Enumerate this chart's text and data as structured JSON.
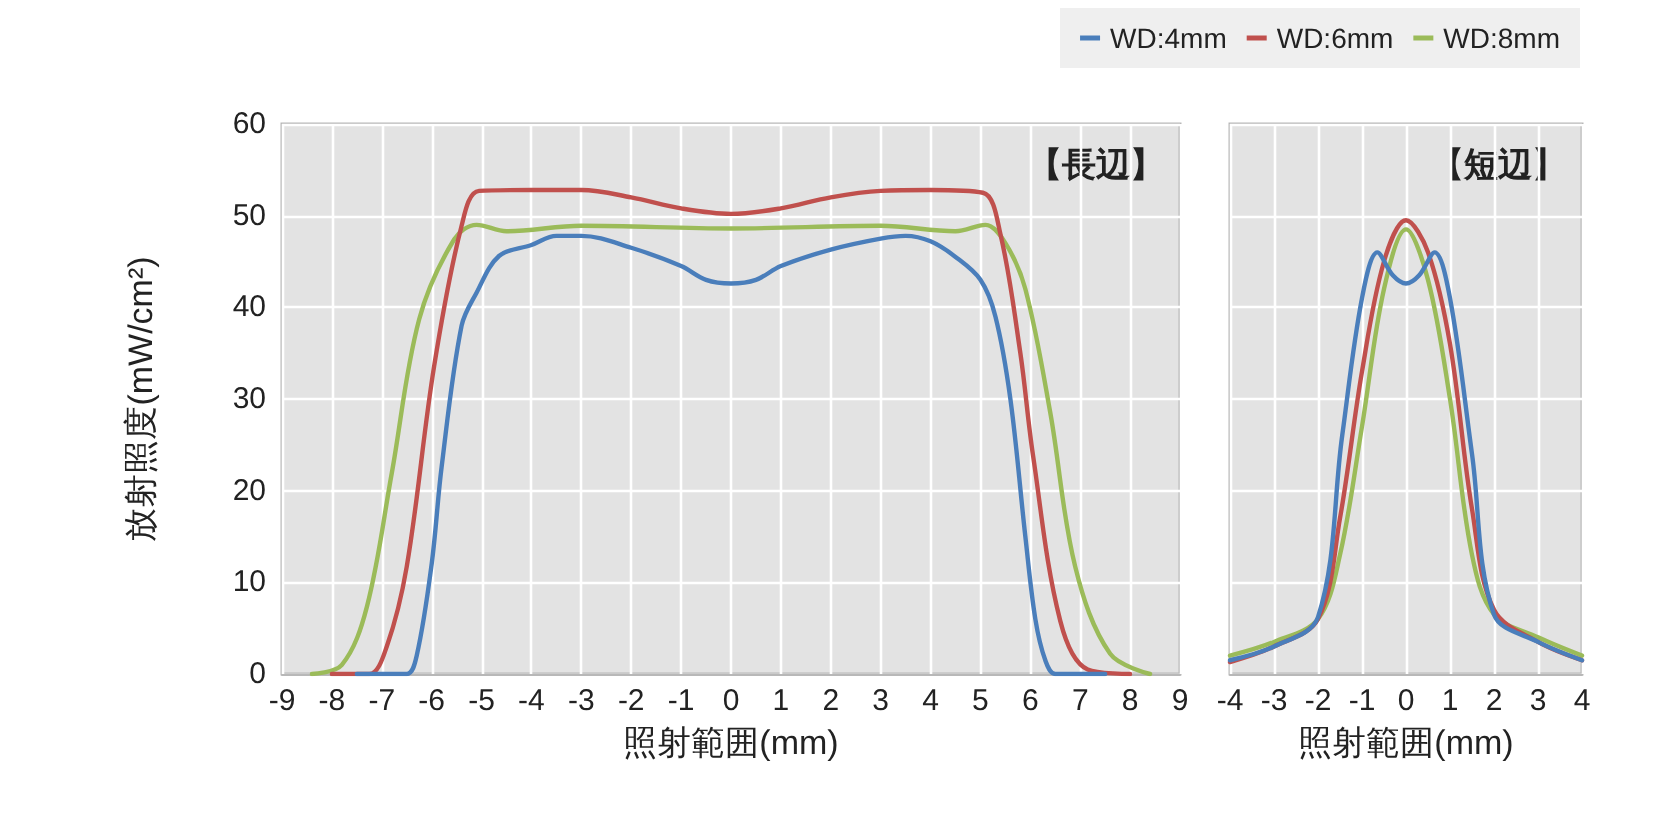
{
  "chart_data": [
    {
      "type": "line",
      "xlabel": "照射範囲(mm)",
      "ylabel": "放射照度(mW/cm²)",
      "annotations": [
        "【長辺】"
      ],
      "xlim": [
        -9,
        9
      ],
      "xticks": [
        -9,
        -8,
        -7,
        -6,
        -5,
        -4,
        -3,
        -2,
        -1,
        0,
        1,
        2,
        3,
        4,
        5,
        6,
        7,
        8,
        9
      ],
      "ylim": [
        0,
        60
      ],
      "yticks": [
        0,
        10,
        20,
        30,
        40,
        50,
        60
      ],
      "grid": true,
      "legend": "top right",
      "marker": "none",
      "line_style": "solid",
      "series": [
        {
          "name": "WD:4mm",
          "color": "#4a7ebb",
          "x": [
            -7.5,
            -6.5,
            -6.3,
            -6,
            -5.8,
            -5.4,
            -5.1,
            -4.65,
            -4,
            -3.5,
            -3,
            -2,
            -1,
            -0.5,
            0,
            0.5,
            1,
            2,
            3,
            3.5,
            4,
            4.5,
            5,
            5.3,
            5.6,
            5.9,
            6.1,
            6.3,
            6.5,
            7.5
          ],
          "values": [
            0,
            0,
            2,
            12,
            22.6,
            38,
            41.6,
            45.6,
            46.8,
            47.8,
            47.8,
            46.5,
            44.5,
            43,
            42.6,
            43,
            44.5,
            46.3,
            47.5,
            47.8,
            47.2,
            45.5,
            43,
            39,
            30,
            15,
            6,
            1.5,
            0,
            0
          ]
        },
        {
          "name": "WD:6mm",
          "color": "#c0504d",
          "x": [
            -8,
            -7.25,
            -6.9,
            -6.5,
            -5.95,
            -5.4,
            -5.05,
            -4,
            -3,
            -2,
            -1,
            0,
            1,
            2,
            3,
            4,
            5.05,
            5.4,
            5.8,
            6.05,
            6.6,
            7.15,
            8
          ],
          "values": [
            0,
            0,
            3,
            11.7,
            33.6,
            48.9,
            52.7,
            52.8,
            52.8,
            52,
            50.8,
            50.2,
            50.8,
            52,
            52.7,
            52.8,
            52.5,
            48,
            35,
            24,
            5.8,
            0.5,
            0
          ]
        },
        {
          "name": "WD:8mm",
          "color": "#9bbb59",
          "x": [
            -8.4,
            -7.8,
            -7.3,
            -6.8,
            -6.25,
            -5.55,
            -5.1,
            -4.5,
            -3,
            0,
            3,
            4.5,
            5.1,
            5.5,
            5.9,
            6.4,
            6.9,
            7.6,
            8.4
          ],
          "values": [
            0,
            1,
            7.3,
            21.9,
            38.7,
            47.4,
            49,
            48.3,
            48.9,
            48.6,
            48.9,
            48.3,
            49,
            47,
            42,
            28.5,
            11.7,
            2.2,
            0
          ]
        }
      ]
    },
    {
      "type": "line",
      "xlabel": "照射範囲(mm)",
      "annotations": [
        "【短辺】"
      ],
      "xlim": [
        -4,
        4
      ],
      "xticks": [
        -4,
        -3,
        -2,
        -1,
        0,
        1,
        2,
        3,
        4
      ],
      "ylim": [
        0,
        60
      ],
      "yticks": [
        0,
        10,
        20,
        30,
        40,
        50,
        60
      ],
      "tick_labels": "x",
      "grid": true,
      "marker": "none",
      "line_style": "solid",
      "series": [
        {
          "color": "#4a7ebb",
          "x": [
            -4,
            -3,
            -2,
            -1.45,
            -1,
            -0.65,
            -0.3,
            0,
            0.3,
            0.65,
            1,
            1.5,
            2,
            3,
            4
          ],
          "values": [
            1.5,
            3,
            6.2,
            26,
            41,
            46,
            43.5,
            42.6,
            43.5,
            46,
            41,
            24,
            6.5,
            3.5,
            1.5
          ]
        },
        {
          "color": "#c0504d",
          "x": [
            -4,
            -3,
            -2,
            -1.5,
            -1,
            -0.5,
            0,
            0.5,
            1,
            1.5,
            2,
            3,
            4
          ],
          "values": [
            1.3,
            3,
            6,
            17,
            33,
            45,
            49.5,
            46,
            36,
            18,
            7,
            3.5,
            1.5
          ]
        },
        {
          "color": "#9bbb59",
          "x": [
            -4,
            -3,
            -2,
            -1.5,
            -1,
            -0.5,
            0,
            0.5,
            1,
            1.5,
            2,
            3,
            4
          ],
          "values": [
            2,
            3.5,
            6,
            13,
            27,
            42,
            48.5,
            43,
            30,
            13,
            6.5,
            4,
            2
          ]
        }
      ]
    }
  ]
}
